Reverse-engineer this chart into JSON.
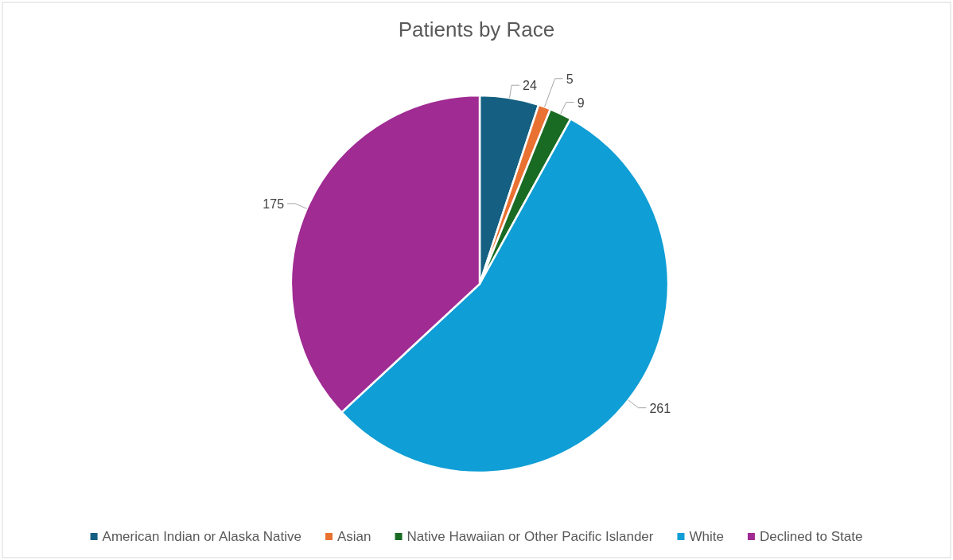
{
  "chart_data": {
    "type": "pie",
    "title": "Patients by Race",
    "categories": [
      "American Indian or Alaska Native",
      "Asian",
      "Native Hawaiian or Other Pacific Islander",
      "White",
      "Declined to State"
    ],
    "values": [
      24,
      5,
      9,
      261,
      175
    ],
    "colors": [
      "#156082",
      "#e97132",
      "#196b24",
      "#0f9ed5",
      "#a02b93"
    ],
    "data_labels": true,
    "legend": "bottom"
  }
}
